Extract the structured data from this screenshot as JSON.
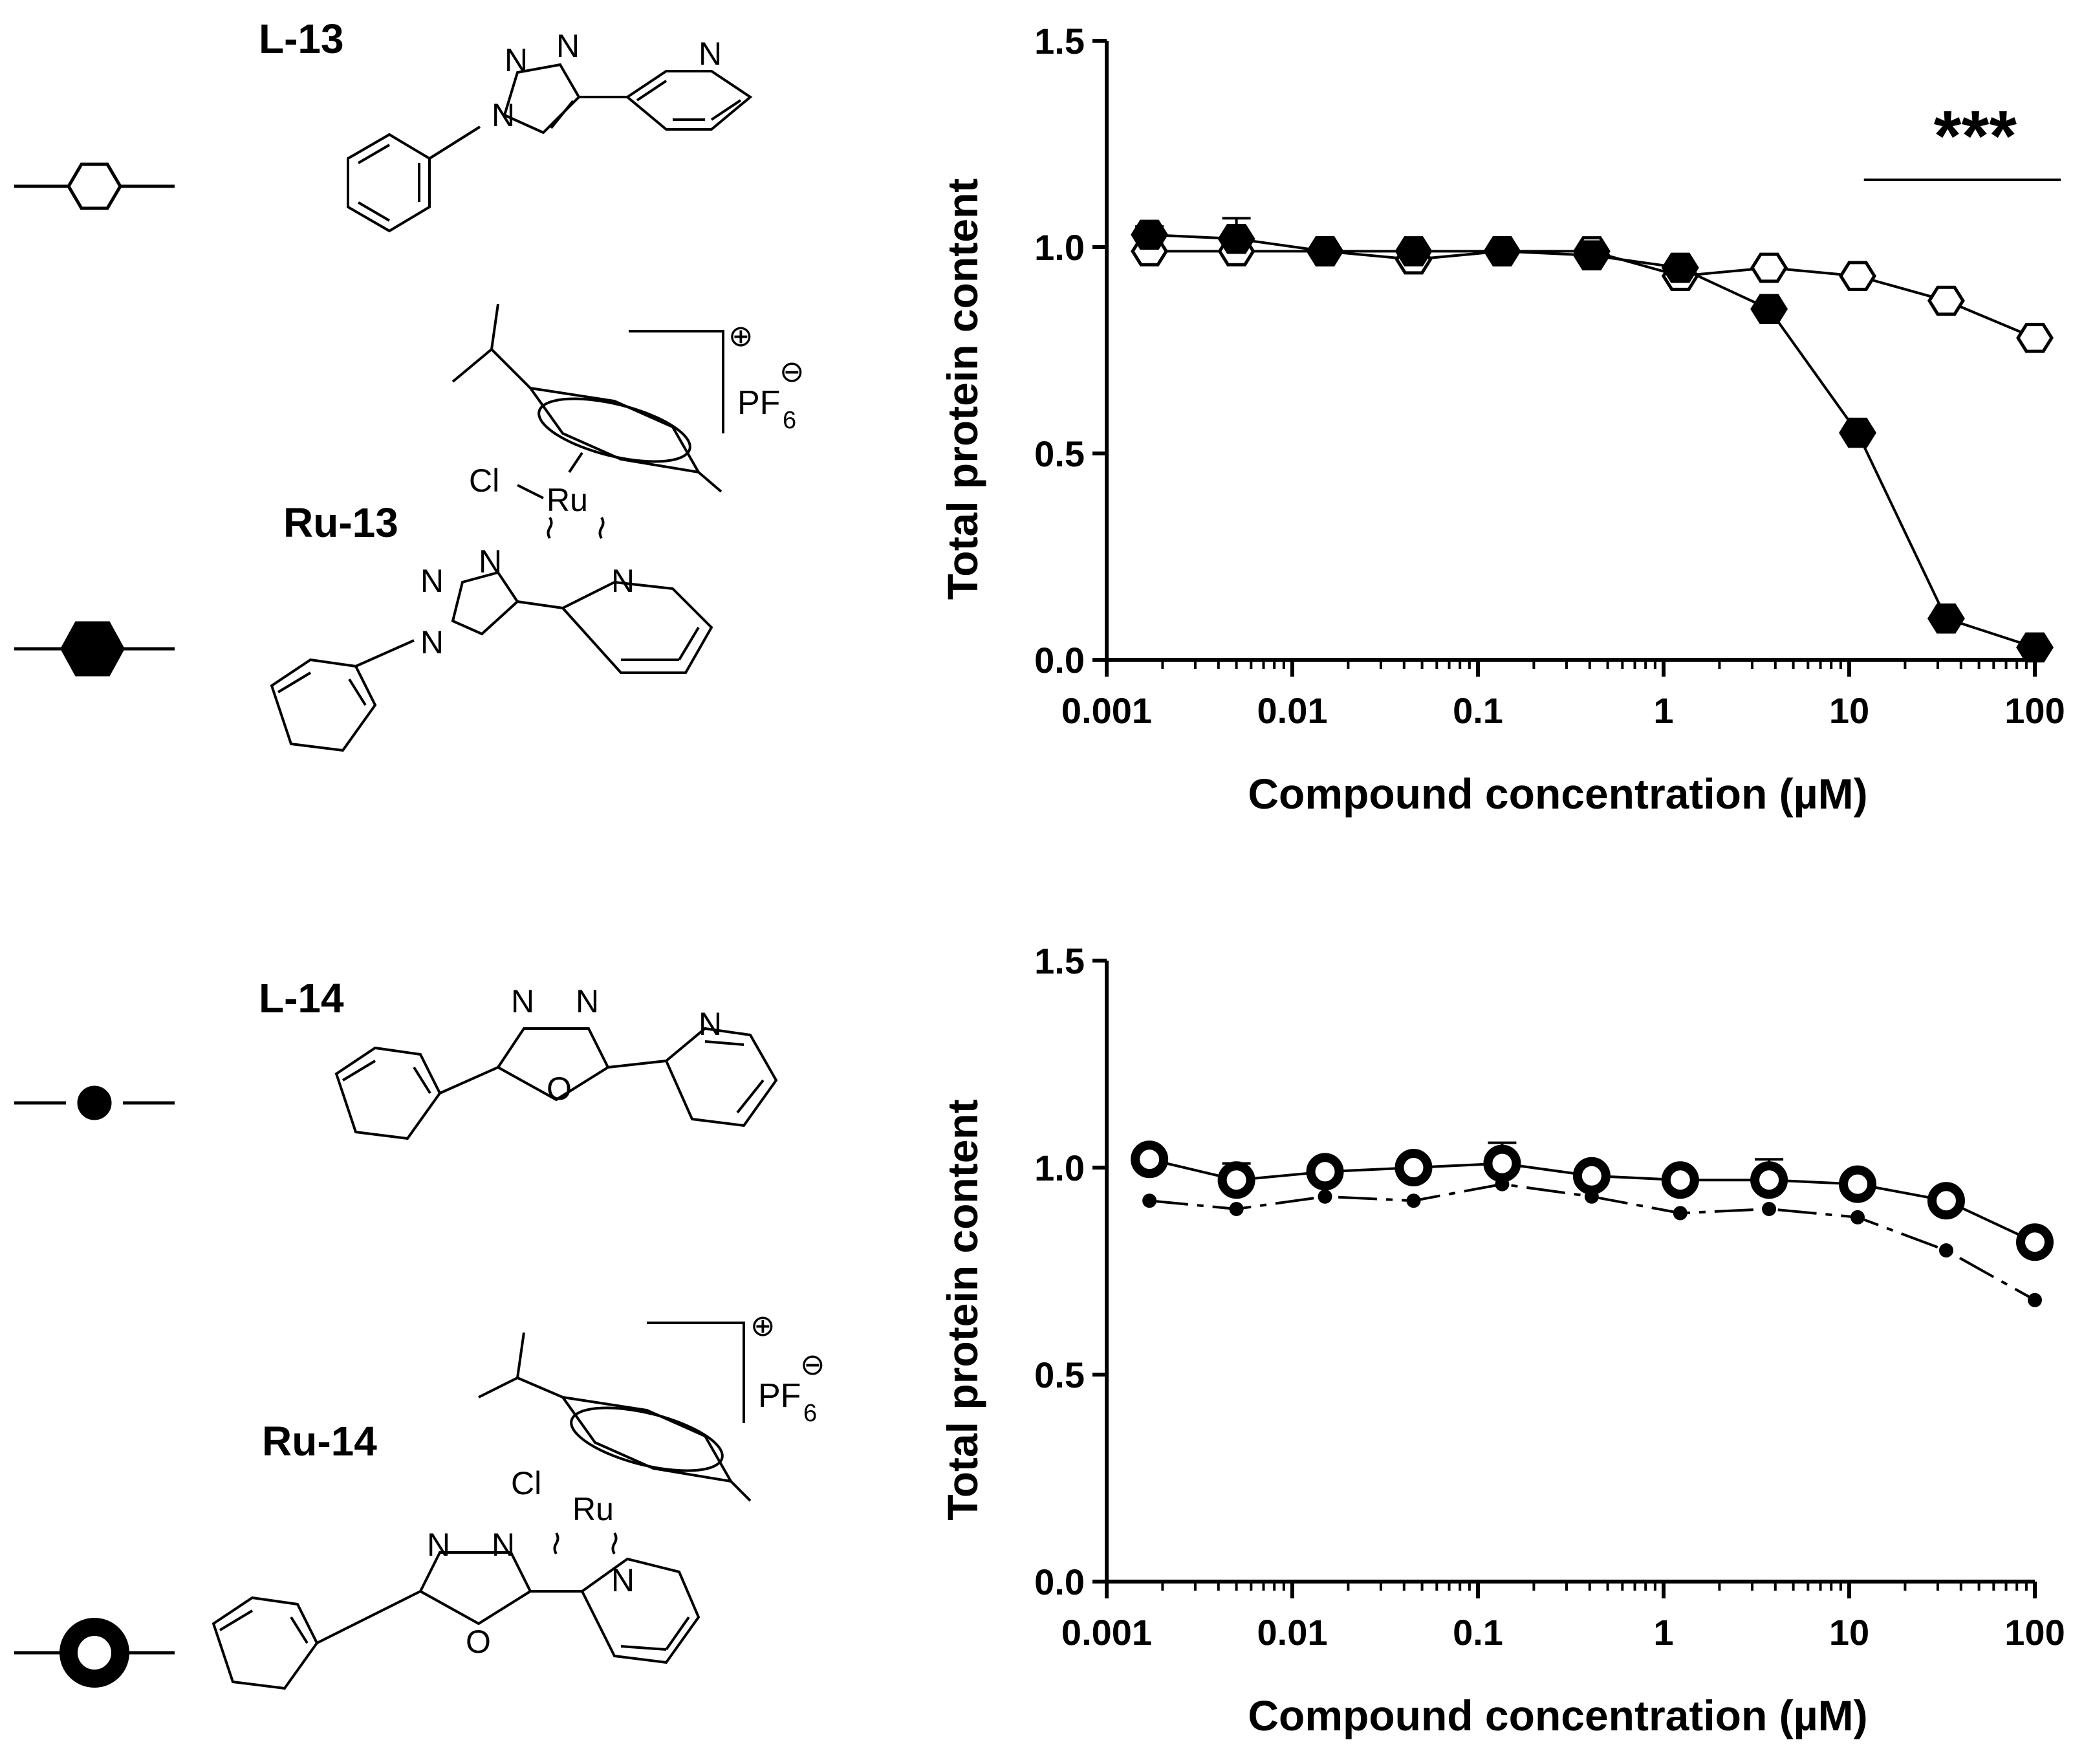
{
  "compounds": [
    {
      "id": "L-13",
      "label": "L-13",
      "marker": "open-hexagon"
    },
    {
      "id": "Ru-13",
      "label": "Ru-13",
      "marker": "filled-hexagon"
    },
    {
      "id": "L-14",
      "label": "L-14",
      "marker": "small-filled-circle"
    },
    {
      "id": "Ru-14",
      "label": "Ru-14",
      "marker": "thick-ring"
    }
  ],
  "structure_labels": {
    "ru_complex_atom": "Ru",
    "chloride": "Cl",
    "counterion": "PF",
    "counterion_subscript": "6",
    "cation_charge": "⊕",
    "anion_charge": "⊖",
    "nitrogen": "N",
    "oxygen": "O"
  },
  "chart_data": [
    {
      "type": "line",
      "xscale": "log",
      "xlabel": "Compound concentration (µM)",
      "ylabel": "Total protein content",
      "xlim": [
        0.001,
        100
      ],
      "ylim": [
        0,
        1.5
      ],
      "xticks": [
        "0.001",
        "0.01",
        "0.1",
        "1",
        "10",
        "100"
      ],
      "yticks": [
        "0.0",
        "0.5",
        "1.0",
        "1.5"
      ],
      "grid": false,
      "significance": {
        "label": "***",
        "x_range": [
          12,
          100
        ]
      },
      "x": [
        0.0017,
        0.005,
        0.015,
        0.045,
        0.135,
        0.41,
        1.23,
        3.7,
        11.1,
        33.3,
        100
      ],
      "series": [
        {
          "compound": "L-13",
          "marker": "open-hexagon",
          "values": [
            0.99,
            0.99,
            0.99,
            0.97,
            0.99,
            0.99,
            0.93,
            0.95,
            0.93,
            0.87,
            0.78
          ]
        },
        {
          "compound": "Ru-13",
          "marker": "filled-hexagon",
          "values": [
            1.03,
            1.02,
            0.99,
            0.99,
            0.99,
            0.98,
            0.95,
            0.85,
            0.55,
            0.1,
            0.03
          ],
          "error_bar_value": [
            0.02,
            0.05,
            0,
            0,
            0,
            0,
            0,
            0,
            0,
            0,
            0
          ]
        }
      ]
    },
    {
      "type": "line",
      "xscale": "log",
      "xlabel": "Compound concentration (µM)",
      "ylabel": "Total protein content",
      "xlim": [
        0.001,
        100
      ],
      "ylim": [
        0,
        1.5
      ],
      "xticks": [
        "0.001",
        "0.01",
        "0.1",
        "1",
        "10",
        "100"
      ],
      "yticks": [
        "0.0",
        "0.5",
        "1.0",
        "1.5"
      ],
      "grid": false,
      "x": [
        0.0017,
        0.005,
        0.015,
        0.045,
        0.135,
        0.41,
        1.23,
        3.7,
        11.1,
        33.3,
        100
      ],
      "series": [
        {
          "compound": "L-14",
          "marker": "small-filled-circle",
          "line": "dash-dot",
          "values": [
            0.92,
            0.9,
            0.93,
            0.92,
            0.96,
            0.93,
            0.89,
            0.9,
            0.88,
            0.8,
            0.68
          ]
        },
        {
          "compound": "Ru-14",
          "marker": "thick-ring",
          "line": "solid",
          "values": [
            1.02,
            0.97,
            0.99,
            1.0,
            1.01,
            0.98,
            0.97,
            0.97,
            0.96,
            0.92,
            0.82
          ],
          "error_bar_value": [
            0,
            0.04,
            0,
            0,
            0.05,
            0,
            0,
            0.05,
            0,
            0,
            0
          ]
        }
      ]
    }
  ],
  "colors": {
    "ink": "#000000",
    "background": "#ffffff"
  }
}
